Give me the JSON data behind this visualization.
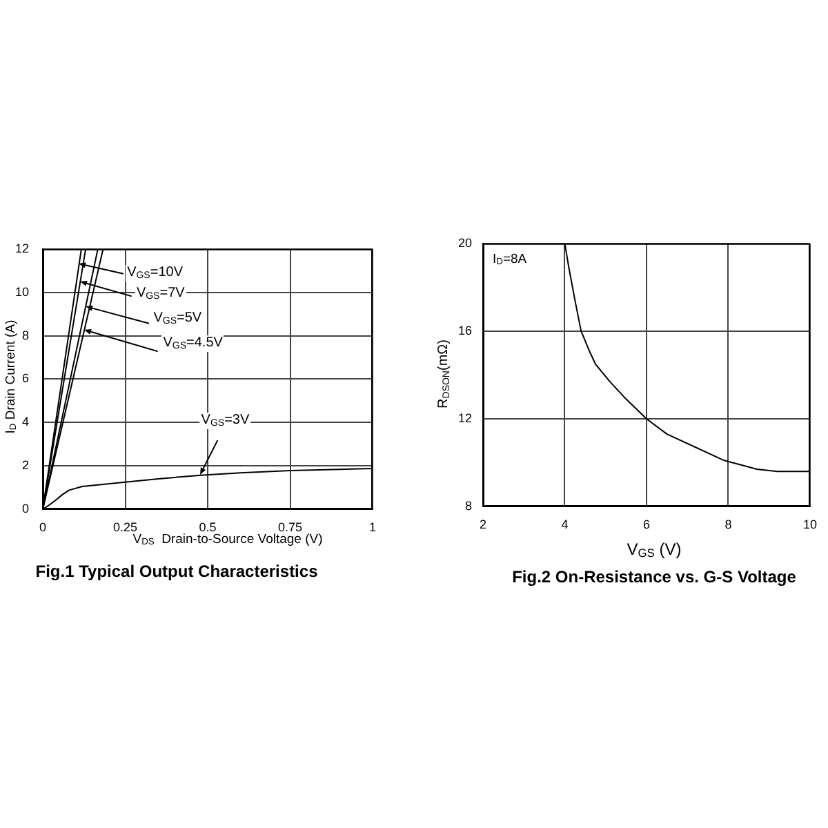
{
  "chart_data": [
    {
      "type": "line",
      "title": "Fig.1 Typical Output Characteristics",
      "xlabel": "V$_{DS}$  Drain-to-Source Voltage (V)",
      "ylabel": "I$_{D}$ Drain Current (A)",
      "series": [
        {
          "name": "V$_{GS}$=10V",
          "color": "#000000",
          "x": [
            0,
            0.117
          ],
          "values": [
            0,
            12
          ]
        },
        {
          "name": "V$_{GS}$=7V",
          "color": "#000000",
          "x": [
            0,
            0.13
          ],
          "values": [
            0,
            12
          ]
        },
        {
          "name": "V$_{GS}$=5V",
          "color": "#000000",
          "x": [
            0,
            0.167
          ],
          "values": [
            0,
            12
          ]
        },
        {
          "name": "V$_{GS}$=4.5V",
          "color": "#000000",
          "x": [
            0,
            0.183
          ],
          "values": [
            0,
            12
          ]
        },
        {
          "name": "V$_{GS}$=3V",
          "color": "#000000",
          "x": [
            0,
            0.02,
            0.04,
            0.06,
            0.08,
            0.12,
            0.25,
            0.35,
            0.48,
            0.6,
            0.75,
            0.9,
            1
          ],
          "values": [
            0,
            0.2,
            0.43,
            0.68,
            0.88,
            1.05,
            1.25,
            1.4,
            1.57,
            1.68,
            1.78,
            1.84,
            1.88
          ]
        }
      ],
      "xlim": [
        0,
        1
      ],
      "xticks": [
        0,
        0.25,
        0.5,
        0.75,
        1
      ],
      "ylim": [
        0,
        12
      ],
      "yticks": [
        0,
        2,
        4,
        6,
        8,
        10,
        12
      ],
      "grid": true,
      "legend": "top left",
      "marker": "none"
    },
    {
      "type": "line",
      "title": "Fig.2 On-Resistance vs. G-S Voltage",
      "xlabel": "V$_{GS}$ (V)",
      "ylabel": "R$_{DSON}$(mΩ)",
      "annotations": [
        "I$_{D}$=8A"
      ],
      "x": [
        4.0,
        4.1,
        4.25,
        4.4,
        4.6,
        4.75,
        5.1,
        5.5,
        6.0,
        6.5,
        7.2,
        7.9,
        8.7,
        9.2,
        10
      ],
      "values": [
        20,
        18.9,
        17.4,
        16.0,
        15.1,
        14.5,
        13.7,
        12.9,
        12.0,
        11.3,
        10.7,
        10.1,
        9.7,
        9.6,
        9.6
      ],
      "color": "#000000",
      "xlim": [
        2,
        10
      ],
      "xticks": [
        2,
        4,
        6,
        8,
        10
      ],
      "ylim": [
        8,
        20
      ],
      "yticks": [
        8,
        12,
        16,
        20
      ],
      "grid": true,
      "marker": "none"
    }
  ]
}
